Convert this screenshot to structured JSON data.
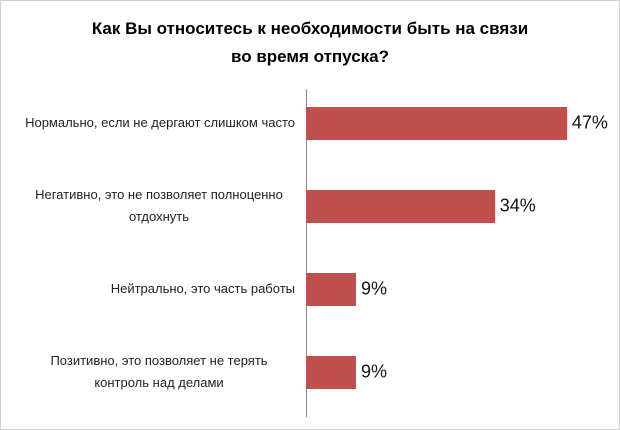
{
  "chart_data": {
    "type": "bar",
    "orientation": "horizontal",
    "title": "Как Вы относитесь к необходимости быть на связи во время отпуска?",
    "categories": [
      "Нормально, если не дергают слишком часто",
      "Негативно, это не позволяет полноценно отдохнуть",
      "Нейтрально, это часть работы",
      "Позитивно, это позволяет не терять контроль над делами"
    ],
    "values": [
      47,
      34,
      9,
      9
    ],
    "value_labels": [
      "47%",
      "34%",
      "9%",
      "9%"
    ],
    "color": "#c0504d"
  }
}
